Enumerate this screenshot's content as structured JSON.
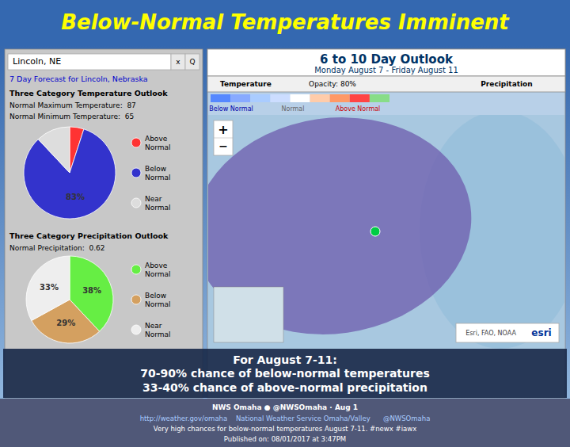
{
  "title": "Below-Normal Temperatures Imminent",
  "annotations": [
    "Lincoln, NE",
    "x",
    "Q",
    "7 Day Forecast for Lincoln, Nebraska",
    "6 to 10 Day Outlook",
    "Monday August 7 - Friday August 11",
    "Temperature",
    "Opacity: 80%",
    "Precipitation",
    "Below Normal",
    "Normal",
    "Above Normal",
    "+",
    "−",
    "Esri, FAO, NOAA",
    "esri",
    "For August 7-11:",
    "70-90% chance of below-normal temperatures",
    "33-40% chance of above-normal precipitation",
    "NWS Omaha ● @NWSOmaha · Aug 1",
    "http://weather.gov/omaha    National Weather Service Omaha/Valley      @NWSOmaha",
    "Very high chances for below-normal temperatures August 7-11. #newx #iawx",
    "Published on: 08/01/2017 at 3:47PM"
  ],
  "chart_data": [
    {
      "type": "pie",
      "title": "Three Category Temperature Outlook",
      "annotations": [
        "Normal Maximum Temperature:  87",
        "Normal Minimum Temperature:  65"
      ],
      "categories": [
        "Above\nNormal",
        "Below\nNormal",
        "Near\nNormal"
      ],
      "values": [
        5,
        83,
        12
      ],
      "colors": [
        "#ff3333",
        "#3333cc",
        "#dddddd"
      ],
      "data_labels": true,
      "value_labels": [
        null,
        "83%",
        null
      ]
    },
    {
      "type": "pie",
      "title": "Three Category Precipitation Outlook",
      "annotations": [
        "Normal Precipitation:  0.62"
      ],
      "categories": [
        "Above\nNormal",
        "Below\nNormal",
        "Near\nNormal"
      ],
      "values": [
        38,
        29,
        33
      ],
      "colors": [
        "#66ee44",
        "#d4a060",
        "#eeeeee"
      ],
      "data_labels": true,
      "value_labels": [
        "38%",
        "29%",
        "33%"
      ]
    }
  ]
}
